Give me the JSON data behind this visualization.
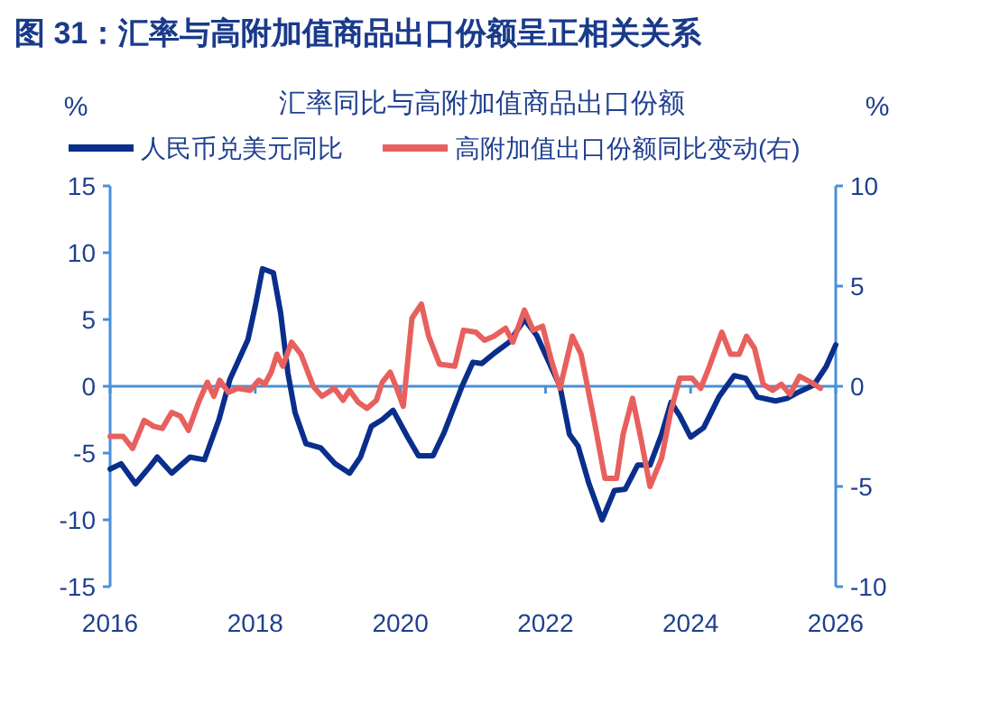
{
  "chart_data": {
    "type": "line",
    "title": "图 31：汇率与高附加值商品出口份额呈正相关关系",
    "subtitle": "汇率同比与高附加值商品出口份额",
    "ylabel": "%",
    "y2label": "%",
    "xlim": [
      2016,
      2026
    ],
    "xticks": [
      2016,
      2018,
      2020,
      2022,
      2024,
      2026
    ],
    "ylim": [
      -15,
      15
    ],
    "yticks": [
      -15,
      -10,
      -5,
      0,
      5,
      10,
      15
    ],
    "y2lim": [
      -10,
      10
    ],
    "y2ticks": [
      -10,
      -5,
      0,
      5,
      10
    ],
    "ref_lines": [
      {
        "axis": "y",
        "value": 0
      }
    ],
    "legend": "top",
    "series": [
      {
        "name": "人民币兑美元同比",
        "color": "#0a2e8c",
        "x": [
          2016.0,
          2016.15,
          2016.35,
          2016.55,
          2016.65,
          2016.85,
          2017.1,
          2017.3,
          2017.5,
          2017.65,
          2017.9,
          2018.0,
          2018.1,
          2018.25,
          2018.35,
          2018.45,
          2018.55,
          2018.7,
          2018.9,
          2019.1,
          2019.3,
          2019.45,
          2019.6,
          2019.75,
          2019.9,
          2020.1,
          2020.25,
          2020.45,
          2020.6,
          2020.85,
          2021.0,
          2021.12,
          2021.3,
          2021.5,
          2021.71,
          2021.88,
          2022.04,
          2022.2,
          2022.33,
          2022.45,
          2022.6,
          2022.78,
          2022.95,
          2023.1,
          2023.27,
          2023.44,
          2023.6,
          2023.73,
          2023.85,
          2024.0,
          2024.18,
          2024.39,
          2024.6,
          2024.76,
          2024.92,
          2025.17,
          2025.33,
          2025.5,
          2025.7,
          2025.87,
          2026.0
        ],
        "values": [
          -6.2,
          -5.8,
          -7.3,
          -6.0,
          -5.3,
          -6.5,
          -5.3,
          -5.5,
          -2.5,
          0.5,
          3.5,
          6.0,
          8.8,
          8.5,
          5.5,
          1.0,
          -2.0,
          -4.3,
          -4.6,
          -5.8,
          -6.5,
          -5.3,
          -3.0,
          -2.5,
          -1.8,
          -3.8,
          -5.2,
          -5.2,
          -3.5,
          0.0,
          1.8,
          1.7,
          2.5,
          3.3,
          5.0,
          3.8,
          1.9,
          0.0,
          -3.6,
          -4.5,
          -7.3,
          -10.0,
          -7.8,
          -7.7,
          -5.9,
          -5.9,
          -3.6,
          -1.2,
          -2.2,
          -3.8,
          -3.1,
          -0.8,
          0.8,
          0.6,
          -0.8,
          -1.1,
          -0.9,
          -0.4,
          0.1,
          1.5,
          3.1
        ]
      },
      {
        "name": "高附加值出口份额同比变动(右)",
        "color": "#e8605e",
        "axis": "y2",
        "x": [
          2016.0,
          2016.18,
          2016.31,
          2016.47,
          2016.6,
          2016.72,
          2016.85,
          2016.97,
          2017.08,
          2017.22,
          2017.34,
          2017.43,
          2017.51,
          2017.63,
          2017.76,
          2017.93,
          2018.05,
          2018.13,
          2018.22,
          2018.3,
          2018.38,
          2018.5,
          2018.63,
          2018.8,
          2018.92,
          2019.09,
          2019.21,
          2019.3,
          2019.42,
          2019.54,
          2019.67,
          2019.75,
          2019.86,
          2019.96,
          2020.04,
          2020.16,
          2020.29,
          2020.39,
          2020.54,
          2020.75,
          2020.87,
          2021.04,
          2021.16,
          2021.29,
          2021.45,
          2021.55,
          2021.71,
          2021.83,
          2021.96,
          2022.08,
          2022.2,
          2022.37,
          2022.49,
          2022.66,
          2022.82,
          2022.98,
          2023.07,
          2023.2,
          2023.32,
          2023.44,
          2023.6,
          2023.73,
          2023.85,
          2024.02,
          2024.14,
          2024.26,
          2024.43,
          2024.55,
          2024.67,
          2024.77,
          2024.88,
          2025.0,
          2025.13,
          2025.25,
          2025.37,
          2025.5,
          2025.66,
          2025.79
        ],
        "values": [
          -2.5,
          -2.5,
          -3.1,
          -1.7,
          -2.0,
          -2.1,
          -1.3,
          -1.5,
          -2.2,
          -0.8,
          0.2,
          -0.5,
          0.3,
          -0.3,
          -0.1,
          -0.2,
          0.3,
          0.1,
          0.7,
          1.6,
          1.0,
          2.2,
          1.6,
          0.0,
          -0.5,
          -0.1,
          -0.7,
          -0.2,
          -0.8,
          -1.1,
          -0.7,
          0.2,
          0.7,
          -0.2,
          -1.0,
          3.4,
          4.1,
          2.5,
          1.1,
          1.0,
          2.8,
          2.7,
          2.3,
          2.5,
          2.9,
          2.2,
          3.8,
          2.8,
          3.0,
          1.3,
          -0.1,
          2.5,
          1.6,
          -1.5,
          -4.6,
          -4.6,
          -2.4,
          -0.6,
          -2.7,
          -5.0,
          -3.6,
          -1.2,
          0.4,
          0.4,
          -0.1,
          1.0,
          2.7,
          1.6,
          1.6,
          2.5,
          1.9,
          0.1,
          -0.2,
          0.1,
          -0.4,
          0.5,
          0.2,
          -0.1
        ]
      }
    ]
  }
}
